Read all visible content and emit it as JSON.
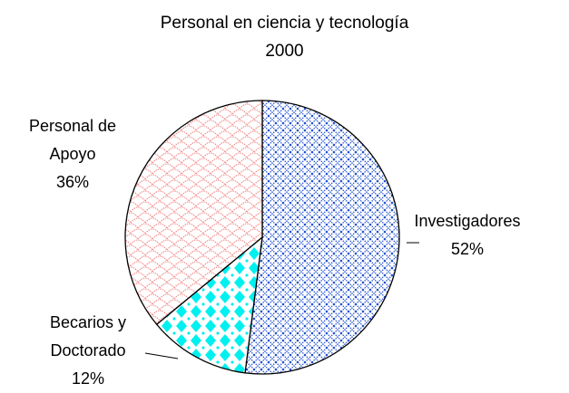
{
  "chart_data": {
    "type": "pie",
    "title": "Personal en ciencia y tecnología",
    "subtitle": "2000",
    "categories": [
      "Investigadores",
      "Becarios y Doctorado",
      "Personal de Apoyo"
    ],
    "values": [
      52,
      12,
      36
    ],
    "value_labels": [
      "52%",
      "12%",
      "36%"
    ],
    "colors": [
      "#1f4fd0",
      "#00f0f0",
      "#f08080"
    ]
  }
}
